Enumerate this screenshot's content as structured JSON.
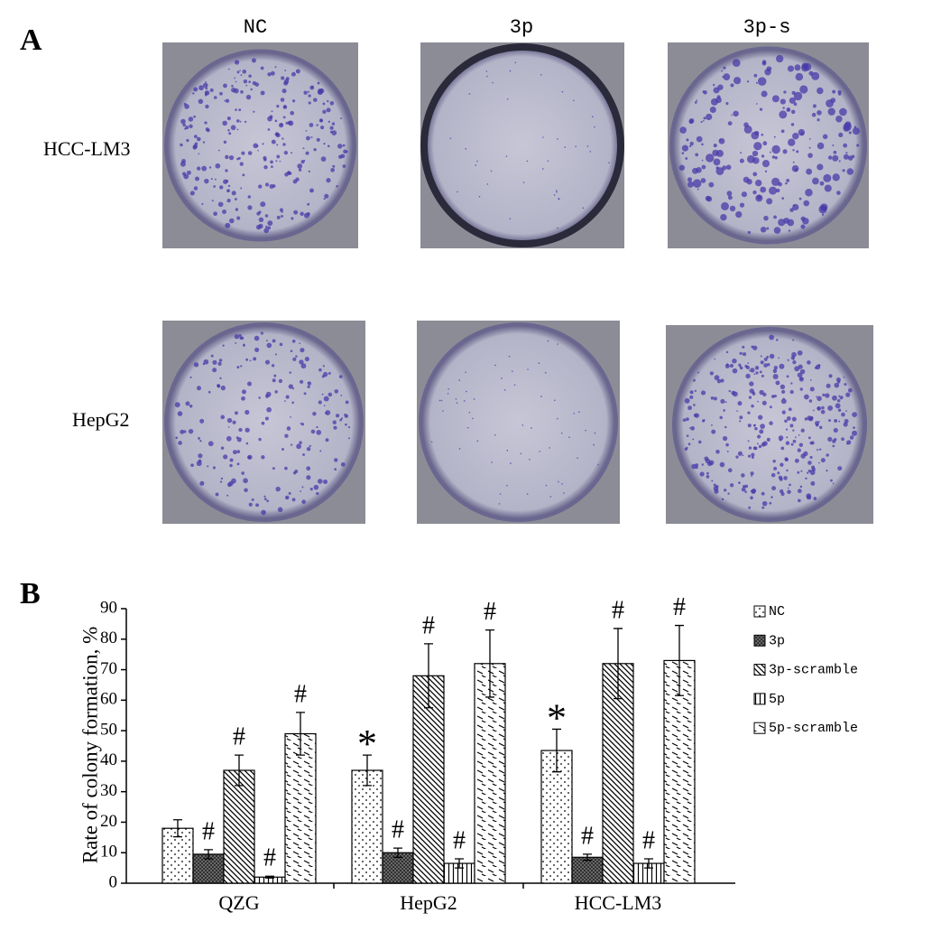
{
  "panel_a": {
    "label": "A",
    "columns": [
      "NC",
      "3p",
      "3p-s"
    ],
    "rows": [
      "HCC-LM3",
      "HepG2"
    ]
  },
  "chart_data": {
    "type": "bar",
    "panel_label": "B",
    "y_label": "Rate of colony formation, %",
    "categories": [
      "QZG",
      "HepG2",
      "HCC-LM3"
    ],
    "ylim": [
      0,
      90
    ],
    "yticks": [
      0,
      10,
      20,
      30,
      40,
      50,
      60,
      70,
      80,
      90
    ],
    "legend": "right",
    "series": [
      {
        "name": "NC",
        "color": "#000000",
        "pattern": "dots",
        "values": [
          18,
          37,
          43.5
        ],
        "errors": [
          2.8,
          5,
          7
        ],
        "annotations": [
          null,
          "*",
          "*"
        ]
      },
      {
        "name": "3p",
        "color": "#000000",
        "pattern": "crosshatch",
        "values": [
          9.5,
          10,
          8.5
        ],
        "errors": [
          1.5,
          1.5,
          1
        ],
        "annotations": [
          "#",
          "#",
          "#"
        ]
      },
      {
        "name": "3p-scramble",
        "color": "#000000",
        "pattern": "diagonal",
        "values": [
          37,
          68,
          72
        ],
        "errors": [
          5,
          10.5,
          11.5
        ],
        "annotations": [
          "#",
          "#",
          "#"
        ]
      },
      {
        "name": "5p",
        "color": "#000000",
        "pattern": "vertical",
        "values": [
          2,
          6.5,
          6.5
        ],
        "errors": [
          0.3,
          1.5,
          1.5
        ],
        "annotations": [
          "#",
          "#",
          "#"
        ]
      },
      {
        "name": "5p-scramble",
        "color": "#000000",
        "pattern": "dashes",
        "values": [
          49,
          72,
          73
        ],
        "errors": [
          7,
          11,
          11.5
        ],
        "annotations": [
          "#",
          "#",
          "#"
        ]
      }
    ]
  }
}
